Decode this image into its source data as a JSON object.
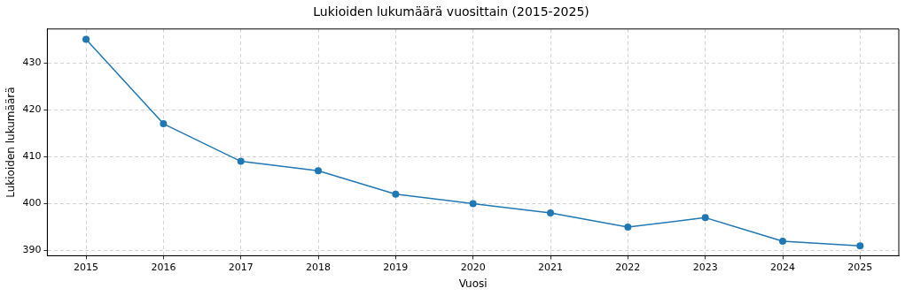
{
  "chart_data": {
    "type": "line",
    "title": "Lukioiden lukumäärä vuosittain (2015-2025)",
    "xlabel": "Vuosi",
    "ylabel": "Lukioiden lukumäärä",
    "x": [
      2015,
      2016,
      2017,
      2018,
      2019,
      2020,
      2021,
      2022,
      2023,
      2024,
      2025
    ],
    "series": [
      {
        "color": "#1f77b4",
        "values": [
          435,
          417,
          409,
          407,
          402,
          400,
          398,
          395,
          397,
          392,
          391
        ]
      }
    ],
    "xlim": [
      2014.5,
      2025.5
    ],
    "xticks": [
      2015,
      2016,
      2017,
      2018,
      2019,
      2020,
      2021,
      2022,
      2023,
      2024,
      2025
    ],
    "ylim": [
      388.9,
      437.2
    ],
    "yticks": [
      390,
      400,
      410,
      420,
      430
    ],
    "grid": true,
    "marker": "circle",
    "line_style": "solid",
    "legend": false
  }
}
